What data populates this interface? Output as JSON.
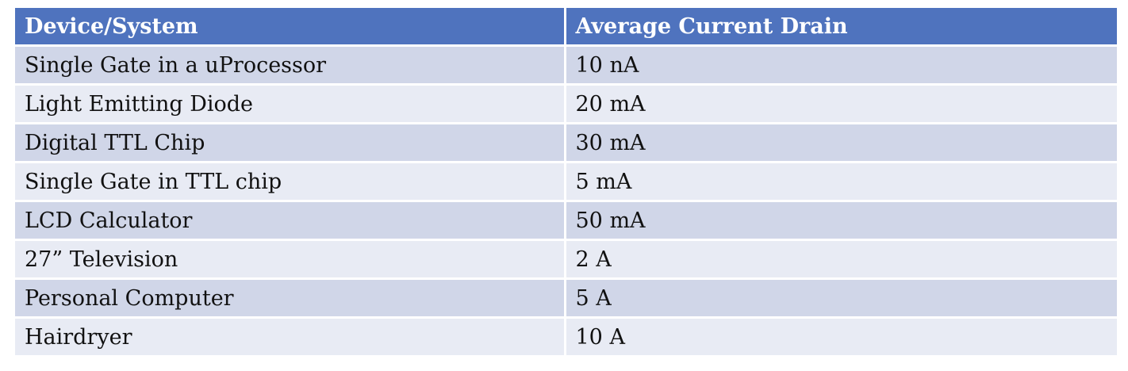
{
  "table": {
    "headers": [
      "Device/System",
      "Average Current Drain"
    ],
    "rows": [
      [
        "Single Gate in a uProcessor",
        "10 nA"
      ],
      [
        "Light Emitting Diode",
        "20 mA"
      ],
      [
        "Digital TTL Chip",
        "30 mA"
      ],
      [
        "Single Gate in TTL chip",
        "5 mA"
      ],
      [
        "LCD Calculator",
        "50 mA"
      ],
      [
        "27” Television",
        "2 A"
      ],
      [
        "Personal Computer",
        "5 A"
      ],
      [
        "Hairdryer",
        "10 A"
      ]
    ]
  },
  "colors": {
    "header_bg": "#4f73be",
    "row_dark": "#d0d6e8",
    "row_light": "#e8ebf4"
  }
}
